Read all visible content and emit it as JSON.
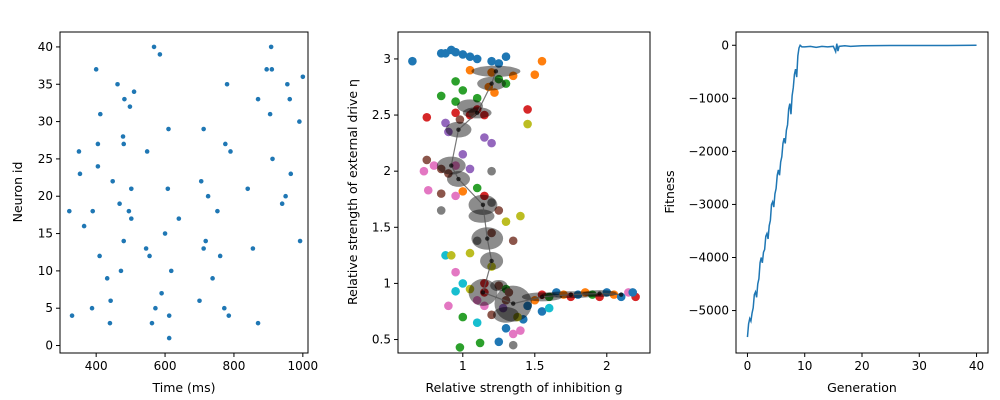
{
  "chart_data": [
    {
      "type": "scatter",
      "name": "raster",
      "xlabel": "Time (ms)",
      "ylabel": "Neuron id",
      "xlim": [
        295,
        1015
      ],
      "ylim": [
        -1,
        42
      ],
      "xticks": [
        400,
        600,
        800,
        1000
      ],
      "yticks": [
        0,
        5,
        10,
        15,
        20,
        25,
        30,
        35,
        40
      ],
      "color": "#1f77b4",
      "points": [
        [
          322,
          18
        ],
        [
          330,
          4
        ],
        [
          350,
          26
        ],
        [
          353,
          23
        ],
        [
          365,
          16
        ],
        [
          388,
          5
        ],
        [
          390,
          18
        ],
        [
          400,
          37
        ],
        [
          405,
          27
        ],
        [
          405,
          24
        ],
        [
          412,
          31
        ],
        [
          410,
          12
        ],
        [
          432,
          9
        ],
        [
          442,
          6
        ],
        [
          440,
          3
        ],
        [
          448,
          22
        ],
        [
          462,
          35
        ],
        [
          468,
          19
        ],
        [
          472,
          10
        ],
        [
          478,
          28
        ],
        [
          480,
          27
        ],
        [
          482,
          33
        ],
        [
          480,
          14
        ],
        [
          495,
          18
        ],
        [
          498,
          32
        ],
        [
          502,
          17
        ],
        [
          502,
          21
        ],
        [
          510,
          34
        ],
        [
          545,
          13
        ],
        [
          548,
          26
        ],
        [
          555,
          12
        ],
        [
          562,
          3
        ],
        [
          568,
          40
        ],
        [
          572,
          5
        ],
        [
          585,
          39
        ],
        [
          590,
          7
        ],
        [
          600,
          15
        ],
        [
          608,
          21
        ],
        [
          610,
          29
        ],
        [
          612,
          4
        ],
        [
          612,
          1
        ],
        [
          618,
          10
        ],
        [
          640,
          17
        ],
        [
          700,
          6
        ],
        [
          705,
          22
        ],
        [
          712,
          13
        ],
        [
          712,
          29
        ],
        [
          718,
          14
        ],
        [
          725,
          20
        ],
        [
          738,
          9
        ],
        [
          752,
          18
        ],
        [
          760,
          12
        ],
        [
          772,
          5
        ],
        [
          775,
          27
        ],
        [
          780,
          35
        ],
        [
          785,
          4
        ],
        [
          790,
          26
        ],
        [
          840,
          21
        ],
        [
          855,
          13
        ],
        [
          870,
          3
        ],
        [
          870,
          33
        ],
        [
          895,
          37
        ],
        [
          905,
          31
        ],
        [
          908,
          40
        ],
        [
          910,
          37
        ],
        [
          912,
          25
        ],
        [
          940,
          19
        ],
        [
          950,
          20
        ],
        [
          955,
          35
        ],
        [
          962,
          33
        ],
        [
          965,
          23
        ],
        [
          990,
          30
        ],
        [
          992,
          14
        ],
        [
          1000,
          36
        ]
      ]
    },
    {
      "type": "scatter",
      "name": "parameter-evolution",
      "xlabel": "Relative strength of inhibition g",
      "ylabel": "Relative strength of external drive η",
      "xlim": [
        0.55,
        2.3
      ],
      "ylim": [
        0.38,
        3.24
      ],
      "xticks": [
        1.0,
        1.5,
        2.0
      ],
      "yticks": [
        0.5,
        1.0,
        1.5,
        2.0,
        2.5,
        3.0
      ],
      "colors": [
        "#1f77b4",
        "#ff7f0e",
        "#2ca02c",
        "#d62728",
        "#9467bd",
        "#8c564b",
        "#e377c2",
        "#7f7f7f",
        "#bcbd22",
        "#17becf"
      ],
      "points": [
        [
          0.65,
          2.98,
          0
        ],
        [
          0.85,
          3.05,
          0
        ],
        [
          0.88,
          3.05,
          0
        ],
        [
          0.92,
          3.08,
          0
        ],
        [
          0.95,
          3.06,
          0
        ],
        [
          1.0,
          3.04,
          0
        ],
        [
          1.05,
          3.02,
          0
        ],
        [
          1.1,
          3.0,
          0
        ],
        [
          1.2,
          2.98,
          0
        ],
        [
          1.25,
          2.96,
          0
        ],
        [
          1.3,
          3.02,
          0
        ],
        [
          1.05,
          2.9,
          1
        ],
        [
          1.2,
          2.88,
          1
        ],
        [
          1.35,
          2.85,
          1
        ],
        [
          1.55,
          2.98,
          1
        ],
        [
          1.5,
          2.86,
          1
        ],
        [
          1.18,
          2.75,
          1
        ],
        [
          1.22,
          2.7,
          1
        ],
        [
          0.95,
          2.8,
          2
        ],
        [
          1.0,
          2.72,
          2
        ],
        [
          1.25,
          2.82,
          2
        ],
        [
          1.3,
          2.78,
          2
        ],
        [
          0.85,
          2.67,
          2
        ],
        [
          1.1,
          2.65,
          2
        ],
        [
          0.95,
          2.62,
          2
        ],
        [
          0.95,
          2.52,
          3
        ],
        [
          1.05,
          2.5,
          3
        ],
        [
          1.1,
          2.55,
          3
        ],
        [
          1.15,
          2.5,
          3
        ],
        [
          1.45,
          2.55,
          3
        ],
        [
          0.98,
          2.46,
          5
        ],
        [
          1.07,
          2.52,
          5
        ],
        [
          0.75,
          2.48,
          3
        ],
        [
          0.88,
          2.43,
          4
        ],
        [
          0.9,
          2.35,
          4
        ],
        [
          1.15,
          2.3,
          4
        ],
        [
          1.2,
          2.25,
          4
        ],
        [
          1.45,
          2.42,
          8
        ],
        [
          1.0,
          2.15,
          4
        ],
        [
          0.75,
          2.1,
          5
        ],
        [
          0.8,
          2.05,
          6
        ],
        [
          0.85,
          2.02,
          5
        ],
        [
          0.9,
          1.98,
          5
        ],
        [
          0.95,
          2.05,
          6
        ],
        [
          1.05,
          2.02,
          4
        ],
        [
          1.2,
          2.0,
          7
        ],
        [
          0.73,
          2.0,
          6
        ],
        [
          0.76,
          1.83,
          6
        ],
        [
          0.85,
          1.8,
          5
        ],
        [
          0.95,
          1.78,
          6
        ],
        [
          1.0,
          1.82,
          1
        ],
        [
          1.1,
          1.85,
          2
        ],
        [
          1.15,
          1.78,
          3
        ],
        [
          1.2,
          1.72,
          7
        ],
        [
          1.25,
          1.65,
          5
        ],
        [
          0.85,
          1.65,
          7
        ],
        [
          1.4,
          1.6,
          8
        ],
        [
          1.3,
          1.55,
          8
        ],
        [
          1.2,
          1.45,
          5
        ],
        [
          1.1,
          1.38,
          7
        ],
        [
          1.35,
          1.38,
          5
        ],
        [
          0.88,
          1.25,
          9
        ],
        [
          0.92,
          1.25,
          8
        ],
        [
          1.05,
          1.27,
          8
        ],
        [
          0.95,
          1.1,
          6
        ],
        [
          1.2,
          1.15,
          8
        ],
        [
          0.95,
          0.93,
          9
        ],
        [
          1.0,
          1.0,
          9
        ],
        [
          1.05,
          0.95,
          8
        ],
        [
          1.15,
          1.0,
          3
        ],
        [
          1.25,
          0.98,
          5
        ],
        [
          1.3,
          0.95,
          2
        ],
        [
          1.1,
          0.85,
          6
        ],
        [
          1.15,
          0.8,
          6
        ],
        [
          0.9,
          0.8,
          6
        ],
        [
          1.0,
          0.7,
          2
        ],
        [
          1.1,
          0.65,
          9
        ],
        [
          1.2,
          0.72,
          5
        ],
        [
          1.3,
          0.6,
          0
        ],
        [
          1.35,
          0.55,
          6
        ],
        [
          1.35,
          0.45,
          7
        ],
        [
          1.25,
          0.48,
          0
        ],
        [
          1.4,
          0.58,
          6
        ],
        [
          0.98,
          0.43,
          2
        ],
        [
          1.12,
          0.47,
          2
        ],
        [
          1.45,
          0.8,
          0
        ],
        [
          1.5,
          0.85,
          1
        ],
        [
          1.55,
          0.9,
          3
        ],
        [
          1.6,
          0.88,
          2
        ],
        [
          1.65,
          0.92,
          0
        ],
        [
          1.7,
          0.9,
          1
        ],
        [
          1.75,
          0.88,
          3
        ],
        [
          1.8,
          0.9,
          0
        ],
        [
          1.85,
          0.92,
          1
        ],
        [
          1.9,
          0.9,
          2
        ],
        [
          1.95,
          0.88,
          3
        ],
        [
          2.0,
          0.92,
          0
        ],
        [
          2.05,
          0.9,
          1
        ],
        [
          2.1,
          0.88,
          0
        ],
        [
          2.15,
          0.92,
          6
        ],
        [
          2.2,
          0.88,
          3
        ],
        [
          2.18,
          0.92,
          0
        ],
        [
          1.55,
          0.75,
          0
        ],
        [
          1.6,
          0.78,
          9
        ],
        [
          1.42,
          0.68,
          0
        ],
        [
          1.38,
          0.7,
          8
        ],
        [
          1.3,
          0.85,
          5
        ],
        [
          1.28,
          0.78,
          4
        ],
        [
          1.32,
          0.92,
          5
        ],
        [
          1.15,
          0.92,
          3
        ]
      ],
      "ellipses": [
        [
          1.23,
          2.89,
          0.17,
          0.05
        ],
        [
          1.2,
          2.78,
          0.1,
          0.06
        ],
        [
          1.05,
          2.58,
          0.09,
          0.06
        ],
        [
          1.1,
          2.52,
          0.1,
          0.05
        ],
        [
          0.97,
          2.37,
          0.09,
          0.07
        ],
        [
          0.92,
          2.05,
          0.1,
          0.08
        ],
        [
          0.97,
          1.93,
          0.08,
          0.07
        ],
        [
          1.14,
          1.7,
          0.1,
          0.09
        ],
        [
          1.13,
          1.6,
          0.09,
          0.06
        ],
        [
          1.17,
          1.4,
          0.11,
          0.1
        ],
        [
          1.2,
          1.2,
          0.08,
          0.08
        ],
        [
          1.14,
          0.92,
          0.1,
          0.12
        ],
        [
          1.35,
          0.82,
          0.13,
          0.16
        ],
        [
          1.3,
          0.72,
          0.09,
          0.07
        ],
        [
          1.55,
          0.88,
          0.14,
          0.04
        ],
        [
          1.75,
          0.9,
          0.2,
          0.03
        ],
        [
          1.95,
          0.91,
          0.12,
          0.03
        ],
        [
          1.25,
          0.98,
          0.06,
          0.05
        ]
      ],
      "trajectory": [
        [
          1.23,
          2.89
        ],
        [
          1.2,
          2.78
        ],
        [
          1.1,
          2.52
        ],
        [
          0.97,
          2.37
        ],
        [
          0.92,
          2.05
        ],
        [
          0.97,
          1.93
        ],
        [
          1.14,
          1.7
        ],
        [
          1.17,
          1.4
        ],
        [
          1.2,
          1.2
        ],
        [
          1.14,
          0.92
        ],
        [
          1.35,
          0.82
        ],
        [
          1.55,
          0.88
        ],
        [
          1.75,
          0.9
        ],
        [
          1.95,
          0.91
        ],
        [
          2.1,
          0.9
        ]
      ]
    },
    {
      "type": "line",
      "name": "fitness",
      "xlabel": "Generation",
      "ylabel": "Fitness",
      "xlim": [
        -2,
        42
      ],
      "ylim": [
        -5800,
        250
      ],
      "xticks": [
        0,
        10,
        20,
        30,
        40
      ],
      "yticks": [
        0,
        -1000,
        -2000,
        -3000,
        -4000,
        -5000
      ],
      "color": "#1f77b4",
      "x": [
        0,
        0.2,
        0.4,
        0.6,
        0.8,
        1,
        1.2,
        1.4,
        1.6,
        1.8,
        2,
        2.2,
        2.4,
        2.6,
        2.8,
        3,
        3.2,
        3.4,
        3.6,
        3.8,
        4,
        4.2,
        4.4,
        4.6,
        4.8,
        5,
        5.2,
        5.4,
        5.6,
        5.8,
        6,
        6.2,
        6.4,
        6.6,
        6.8,
        7,
        7.2,
        7.4,
        7.6,
        7.8,
        8,
        8.2,
        8.4,
        8.6,
        8.8,
        9,
        9.2,
        9.5,
        10,
        11,
        12,
        13,
        14,
        15,
        15.4,
        15.6,
        15.8,
        16,
        17,
        18,
        20,
        25,
        30,
        35,
        40
      ],
      "y": [
        -5500,
        -5250,
        -5150,
        -5200,
        -5050,
        -4950,
        -4700,
        -4650,
        -4750,
        -4500,
        -4400,
        -4100,
        -4000,
        -4100,
        -3900,
        -3850,
        -3600,
        -3550,
        -3650,
        -3400,
        -3300,
        -3000,
        -2950,
        -3050,
        -2800,
        -2700,
        -2450,
        -2350,
        -2450,
        -2200,
        -2100,
        -1850,
        -1750,
        -1850,
        -1600,
        -1500,
        -1200,
        -1100,
        -1300,
        -950,
        -800,
        -550,
        -450,
        -600,
        -200,
        -50,
        0,
        -30,
        -30,
        -20,
        -40,
        -20,
        -30,
        -20,
        -120,
        30,
        -110,
        -20,
        -10,
        -20,
        -10,
        -5,
        -5,
        -5,
        0
      ]
    }
  ]
}
